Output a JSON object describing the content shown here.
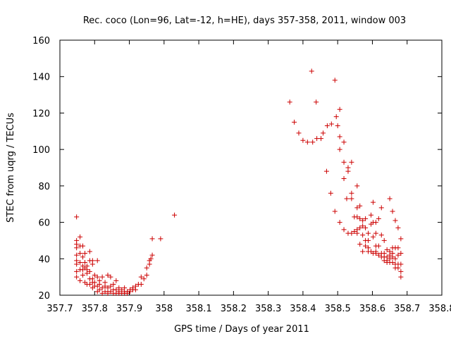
{
  "chart_data": {
    "type": "scatter",
    "title": "Rec. coco (Lon=96, Lat=-12, h=HE), days 357-358, 2011, window 003",
    "xlabel": "GPS time / Days of year 2011",
    "ylabel": "STEC from uqrg / TECUs",
    "xlim": [
      357.7,
      358.8
    ],
    "ylim": [
      20,
      160
    ],
    "x_ticks": [
      357.7,
      357.8,
      357.9,
      358.0,
      358.1,
      358.2,
      358.3,
      358.4,
      358.5,
      358.6,
      358.7,
      358.8
    ],
    "x_tick_labels": [
      "357.7",
      "357.8",
      "357.9",
      "358",
      "358.1",
      "358.2",
      "358.3",
      "358.4",
      "358.5",
      "358.6",
      "358.7",
      "358.8"
    ],
    "y_ticks": [
      20,
      40,
      60,
      80,
      100,
      120,
      140,
      160
    ],
    "y_tick_labels": [
      "20",
      "40",
      "60",
      "80",
      "100",
      "120",
      "140",
      "160"
    ],
    "grid": false,
    "marker": "+",
    "marker_color": "#cc0000",
    "series": [
      {
        "points": [
          [
            357.748,
            63
          ],
          [
            357.748,
            50
          ],
          [
            357.748,
            48
          ],
          [
            357.748,
            46
          ],
          [
            357.748,
            42
          ],
          [
            357.748,
            39
          ],
          [
            357.748,
            37
          ],
          [
            357.748,
            33
          ],
          [
            357.748,
            30
          ],
          [
            357.758,
            52
          ],
          [
            357.758,
            47
          ],
          [
            357.758,
            43
          ],
          [
            357.758,
            38
          ],
          [
            357.758,
            34
          ],
          [
            357.758,
            28
          ],
          [
            357.766,
            47
          ],
          [
            357.766,
            41
          ],
          [
            357.766,
            36
          ],
          [
            357.766,
            34
          ],
          [
            357.766,
            31
          ],
          [
            357.772,
            43
          ],
          [
            357.772,
            38
          ],
          [
            357.772,
            35
          ],
          [
            357.772,
            27
          ],
          [
            357.778,
            36
          ],
          [
            357.778,
            34
          ],
          [
            357.778,
            32
          ],
          [
            357.778,
            26
          ],
          [
            357.786,
            44
          ],
          [
            357.786,
            39
          ],
          [
            357.786,
            33
          ],
          [
            357.786,
            29
          ],
          [
            357.786,
            26
          ],
          [
            357.794,
            39
          ],
          [
            357.794,
            37
          ],
          [
            357.794,
            29
          ],
          [
            357.794,
            27
          ],
          [
            357.794,
            24
          ],
          [
            357.8,
            31
          ],
          [
            357.8,
            27
          ],
          [
            357.8,
            25
          ],
          [
            357.808,
            39
          ],
          [
            357.808,
            30
          ],
          [
            357.808,
            25
          ],
          [
            357.808,
            22
          ],
          [
            357.814,
            28
          ],
          [
            357.814,
            26
          ],
          [
            357.814,
            23
          ],
          [
            357.822,
            30
          ],
          [
            357.822,
            24
          ],
          [
            357.822,
            21
          ],
          [
            357.83,
            27
          ],
          [
            357.83,
            25
          ],
          [
            357.83,
            22
          ],
          [
            357.838,
            31
          ],
          [
            357.838,
            24
          ],
          [
            357.838,
            22
          ],
          [
            357.838,
            21
          ],
          [
            357.846,
            30
          ],
          [
            357.846,
            25
          ],
          [
            357.846,
            22
          ],
          [
            357.854,
            26
          ],
          [
            357.854,
            23
          ],
          [
            357.854,
            21
          ],
          [
            357.862,
            28
          ],
          [
            357.862,
            23
          ],
          [
            357.862,
            21
          ],
          [
            357.87,
            24
          ],
          [
            357.87,
            22
          ],
          [
            357.87,
            21
          ],
          [
            357.878,
            23
          ],
          [
            357.878,
            21
          ],
          [
            357.886,
            24
          ],
          [
            357.886,
            22
          ],
          [
            357.886,
            21
          ],
          [
            357.894,
            22
          ],
          [
            357.894,
            21
          ],
          [
            357.902,
            23
          ],
          [
            357.902,
            22
          ],
          [
            357.91,
            24
          ],
          [
            357.91,
            23
          ],
          [
            357.918,
            25
          ],
          [
            357.918,
            23
          ],
          [
            357.926,
            26
          ],
          [
            357.934,
            30
          ],
          [
            357.934,
            26
          ],
          [
            357.942,
            29
          ],
          [
            357.95,
            35
          ],
          [
            357.95,
            31
          ],
          [
            357.958,
            39
          ],
          [
            357.958,
            37
          ],
          [
            357.962,
            40
          ],
          [
            357.966,
            51
          ],
          [
            357.966,
            42
          ],
          [
            357.99,
            51
          ],
          [
            358.03,
            64
          ],
          [
            358.362,
            126
          ],
          [
            358.375,
            115
          ],
          [
            358.388,
            109
          ],
          [
            358.4,
            105
          ],
          [
            358.413,
            104
          ],
          [
            358.425,
            143
          ],
          [
            358.428,
            104
          ],
          [
            358.438,
            126
          ],
          [
            358.44,
            106
          ],
          [
            358.452,
            106
          ],
          [
            358.458,
            109
          ],
          [
            358.468,
            88
          ],
          [
            358.47,
            113
          ],
          [
            358.48,
            76
          ],
          [
            358.482,
            114
          ],
          [
            358.492,
            138
          ],
          [
            358.492,
            66
          ],
          [
            358.496,
            118
          ],
          [
            358.5,
            113
          ],
          [
            358.506,
            122
          ],
          [
            358.506,
            107
          ],
          [
            358.506,
            100
          ],
          [
            358.506,
            60
          ],
          [
            358.518,
            104
          ],
          [
            358.518,
            93
          ],
          [
            358.518,
            84
          ],
          [
            358.518,
            56
          ],
          [
            358.526,
            73
          ],
          [
            358.53,
            90
          ],
          [
            358.53,
            88
          ],
          [
            358.53,
            54
          ],
          [
            358.54,
            93
          ],
          [
            358.54,
            76
          ],
          [
            358.54,
            73
          ],
          [
            358.54,
            54
          ],
          [
            358.548,
            63
          ],
          [
            358.548,
            55
          ],
          [
            358.556,
            80
          ],
          [
            358.556,
            68
          ],
          [
            358.556,
            63
          ],
          [
            358.556,
            56
          ],
          [
            358.556,
            54
          ],
          [
            358.564,
            69
          ],
          [
            358.564,
            62
          ],
          [
            358.564,
            57
          ],
          [
            358.564,
            48
          ],
          [
            358.572,
            61
          ],
          [
            358.572,
            58
          ],
          [
            358.572,
            53
          ],
          [
            358.572,
            44
          ],
          [
            358.58,
            62
          ],
          [
            358.58,
            57
          ],
          [
            358.58,
            50
          ],
          [
            358.58,
            47
          ],
          [
            358.588,
            54
          ],
          [
            358.588,
            50
          ],
          [
            358.588,
            46
          ],
          [
            358.588,
            44
          ],
          [
            358.596,
            64
          ],
          [
            358.596,
            59
          ],
          [
            358.596,
            44
          ],
          [
            358.602,
            71
          ],
          [
            358.602,
            60
          ],
          [
            358.602,
            52
          ],
          [
            358.602,
            43
          ],
          [
            358.61,
            60
          ],
          [
            358.61,
            54
          ],
          [
            358.61,
            47
          ],
          [
            358.61,
            44
          ],
          [
            358.61,
            43
          ],
          [
            358.618,
            62
          ],
          [
            358.618,
            47
          ],
          [
            358.618,
            42
          ],
          [
            358.626,
            68
          ],
          [
            358.626,
            53
          ],
          [
            358.626,
            43
          ],
          [
            358.626,
            41
          ],
          [
            358.634,
            50
          ],
          [
            358.634,
            43
          ],
          [
            358.634,
            41
          ],
          [
            358.634,
            39
          ],
          [
            358.642,
            45
          ],
          [
            358.642,
            41
          ],
          [
            358.642,
            39
          ],
          [
            358.642,
            38
          ],
          [
            358.65,
            73
          ],
          [
            358.65,
            44
          ],
          [
            358.65,
            42
          ],
          [
            358.65,
            40
          ],
          [
            358.65,
            38
          ],
          [
            358.658,
            66
          ],
          [
            358.658,
            46
          ],
          [
            358.658,
            43
          ],
          [
            358.658,
            41
          ],
          [
            358.658,
            38
          ],
          [
            358.666,
            61
          ],
          [
            358.666,
            46
          ],
          [
            358.666,
            40
          ],
          [
            358.666,
            37
          ],
          [
            358.666,
            35
          ],
          [
            358.674,
            57
          ],
          [
            358.674,
            46
          ],
          [
            358.674,
            42
          ],
          [
            358.674,
            37
          ],
          [
            358.674,
            35
          ],
          [
            358.682,
            51
          ],
          [
            358.682,
            43
          ],
          [
            358.682,
            37
          ],
          [
            358.682,
            33
          ],
          [
            358.682,
            30
          ]
        ]
      }
    ]
  }
}
